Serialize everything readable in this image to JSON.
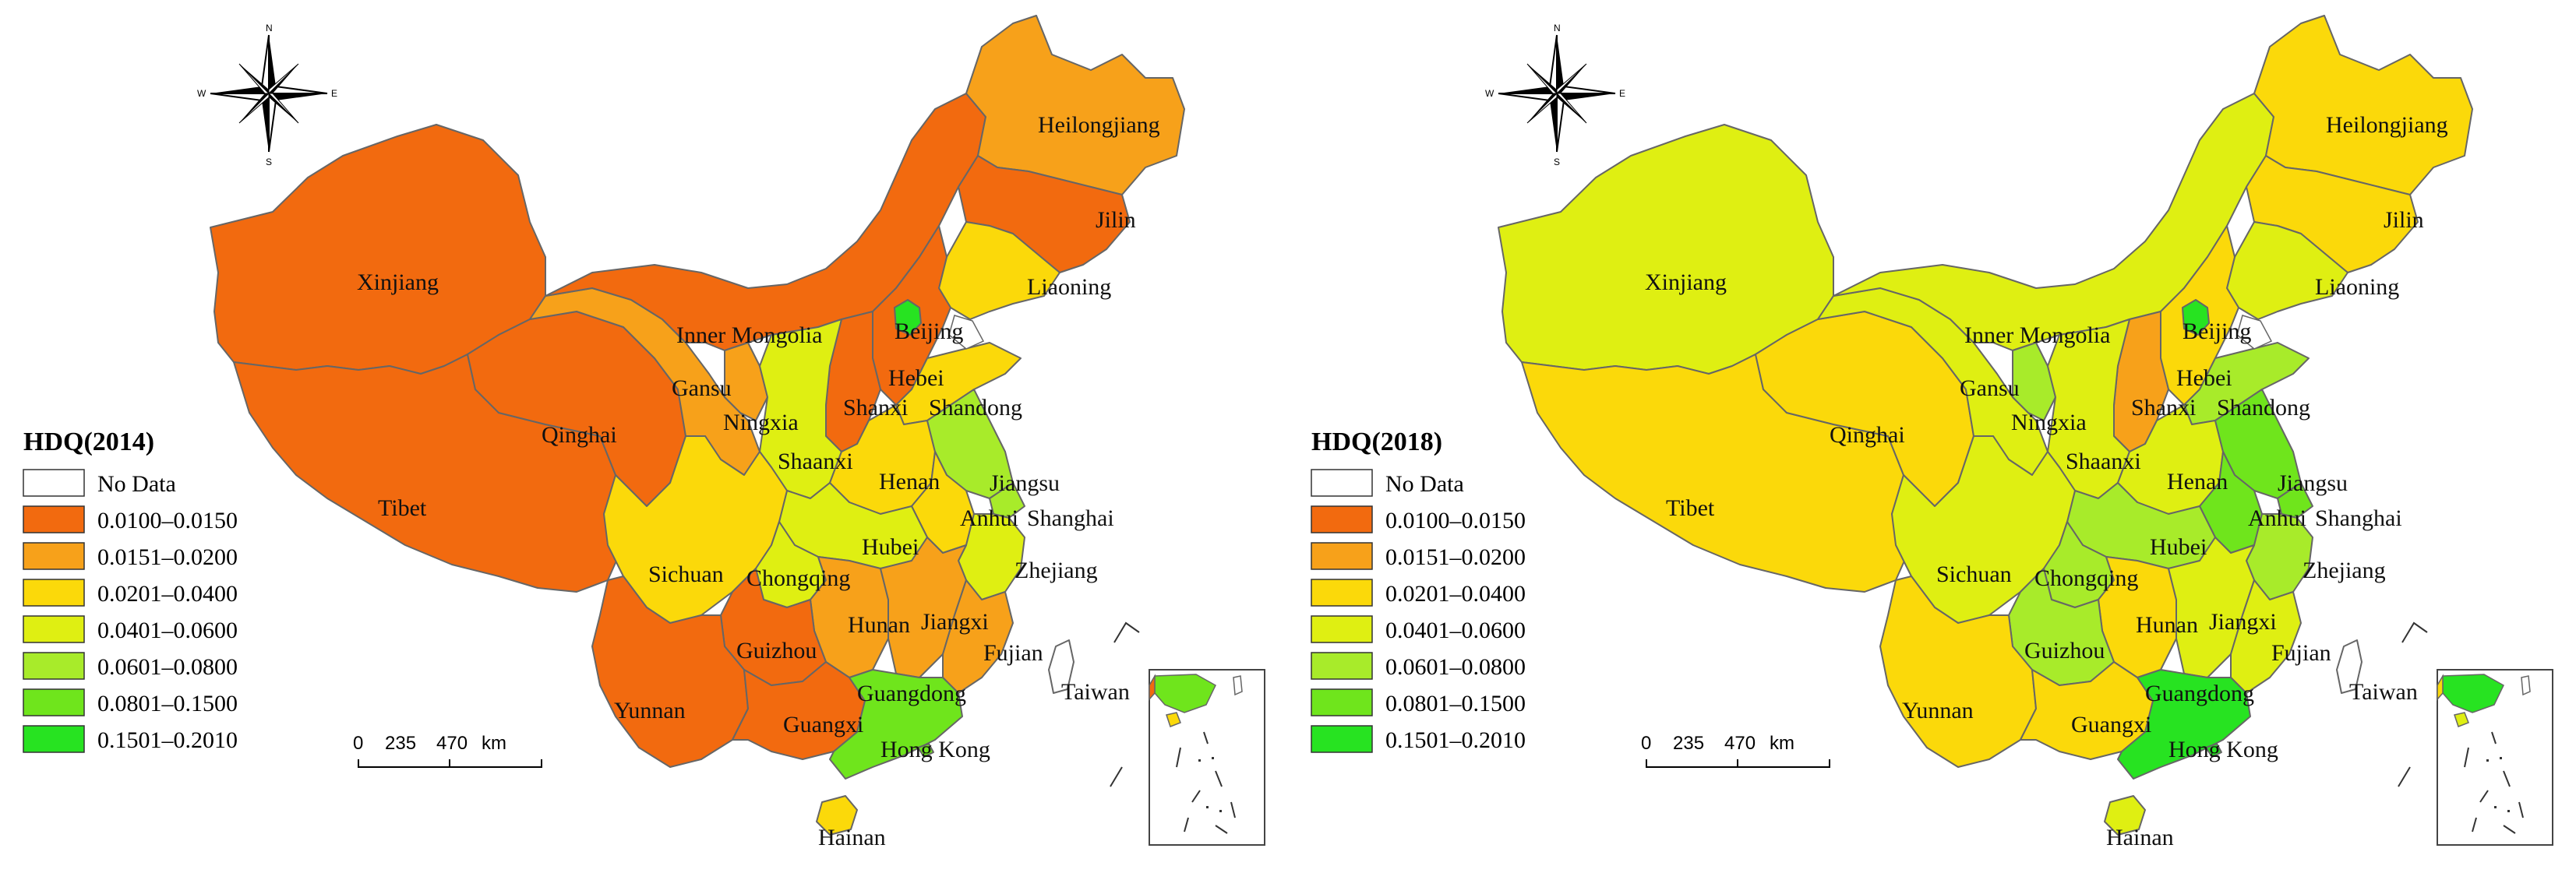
{
  "colors": {
    "bin_nodata": "#ffffff",
    "bin_1": "#f26a0f",
    "bin_2": "#f7a11a",
    "bin_3": "#fbd90a",
    "bin_4": "#dfef12",
    "bin_5": "#a8eb2a",
    "bin_6": "#6fe51c",
    "bin_7": "#27e321",
    "border": "#666666"
  },
  "legend": {
    "items": [
      {
        "label": "No Data",
        "bin": "nodata"
      },
      {
        "label": "0.0100–0.0150",
        "bin": 1
      },
      {
        "label": "0.0151–0.0200",
        "bin": 2
      },
      {
        "label": "0.0201–0.0400",
        "bin": 3
      },
      {
        "label": "0.0401–0.0600",
        "bin": 4
      },
      {
        "label": "0.0601–0.0800",
        "bin": 5
      },
      {
        "label": "0.0801–0.1500",
        "bin": 6
      },
      {
        "label": "0.1501–0.2010",
        "bin": 7
      }
    ]
  },
  "scale_bar": {
    "t0": "0",
    "t1": "235",
    "t2": "470",
    "unit": "km"
  },
  "compass": {
    "n": "N",
    "s": "S",
    "e": "E",
    "w": "W"
  },
  "province_names": {
    "xinjiang": "Xinjiang",
    "tibet": "Tibet",
    "qinghai": "Qinghai",
    "gansu": "Gansu",
    "inner_mongolia": "Inner Mongolia",
    "heilongjiang": "Heilongjiang",
    "jilin": "Jilin",
    "liaoning": "Liaoning",
    "beijing": "Beijing",
    "hebei": "Hebei",
    "shanxi": "Shanxi",
    "shandong": "Shandong",
    "ningxia": "Ningxia",
    "shaanxi": "Shaanxi",
    "henan": "Henan",
    "jiangsu": "Jiangsu",
    "anhui": "Anhui",
    "shanghai": "Shanghai",
    "hubei": "Hubei",
    "sichuan": "Sichuan",
    "chongqing": "Chongqing",
    "zhejiang": "Zhejiang",
    "hunan": "Hunan",
    "jiangxi": "Jiangxi",
    "guizhou": "Guizhou",
    "fujian": "Fujian",
    "yunnan": "Yunnan",
    "guangxi": "Guangxi",
    "guangdong": "Guangdong",
    "taiwan": "Taiwan",
    "hong_kong": "Hong Kong",
    "hainan": "Hainan"
  },
  "maps": [
    {
      "title": "HDQ(2014)",
      "bins": {
        "xinjiang": 1,
        "tibet": 1,
        "qinghai": 1,
        "gansu": 2,
        "inner_mongolia": 1,
        "heilongjiang": 2,
        "jilin": 1,
        "liaoning": 3,
        "beijing": 7,
        "hebei": 1,
        "shanxi": 1,
        "shandong": 3,
        "ningxia": 2,
        "shaanxi": 4,
        "henan": 3,
        "jiangsu": 5,
        "anhui": 3,
        "shanghai": 5,
        "hubei": 4,
        "sichuan": 3,
        "chongqing": 4,
        "zhejiang": 4,
        "hunan": 2,
        "jiangxi": 2,
        "guizhou": 1,
        "fujian": 2,
        "yunnan": 1,
        "guangxi": 1,
        "guangdong": 6,
        "taiwan": "nodata",
        "hong_kong": 6,
        "hainan": 3
      }
    },
    {
      "title": "HDQ(2018)",
      "bins": {
        "xinjiang": 4,
        "tibet": 3,
        "qinghai": 3,
        "gansu": 4,
        "inner_mongolia": 4,
        "heilongjiang": 3,
        "jilin": 3,
        "liaoning": 4,
        "beijing": 7,
        "hebei": 3,
        "shanxi": 2,
        "shandong": 5,
        "ningxia": 5,
        "shaanxi": 4,
        "henan": 4,
        "jiangsu": 6,
        "anhui": 6,
        "shanghai": 6,
        "hubei": 5,
        "sichuan": 4,
        "chongqing": 5,
        "zhejiang": 5,
        "hunan": 3,
        "jiangxi": 4,
        "guizhou": 5,
        "fujian": 4,
        "yunnan": 3,
        "guangxi": 3,
        "guangdong": 7,
        "taiwan": "nodata",
        "hong_kong": 7,
        "hainan": 4
      }
    }
  ]
}
